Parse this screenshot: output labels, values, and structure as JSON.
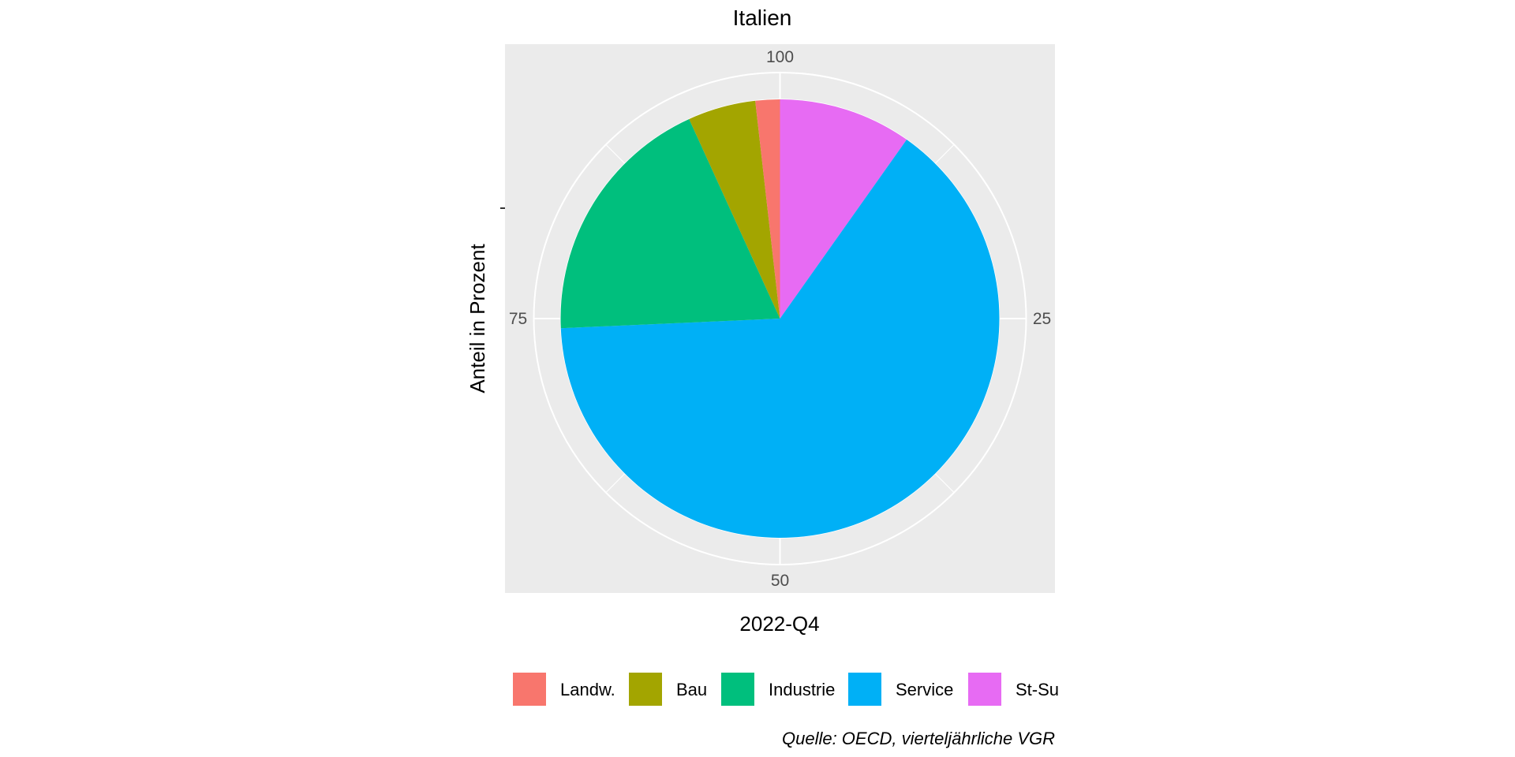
{
  "chart_data": {
    "type": "pie",
    "title": "Italien",
    "xlabel": "2022-Q4",
    "ylabel": "Anteil in Prozent",
    "theta_ticks": [
      {
        "value": 0,
        "label": "100"
      },
      {
        "value": 25,
        "label": "25"
      },
      {
        "value": 50,
        "label": "50"
      },
      {
        "value": 75,
        "label": "75"
      }
    ],
    "series": [
      {
        "name": "St-Su",
        "value": 9.8,
        "color": "#E76BF3"
      },
      {
        "name": "Service",
        "value": 64.5,
        "color": "#00B0F6"
      },
      {
        "name": "Industrie",
        "value": 18.9,
        "color": "#00BF7D"
      },
      {
        "name": "Bau",
        "value": 5.0,
        "color": "#A3A500"
      },
      {
        "name": "Landw.",
        "value": 1.8,
        "color": "#F8766D"
      }
    ],
    "legend": {
      "position": "bottom",
      "order": [
        "Landw.",
        "Bau",
        "Industrie",
        "Service",
        "St-Su"
      ]
    },
    "caption": "Quelle: OECD, vierteljährliche VGR",
    "panel_background": "#EBEBEB",
    "grid_color": "#FFFFFF",
    "grid": true
  }
}
